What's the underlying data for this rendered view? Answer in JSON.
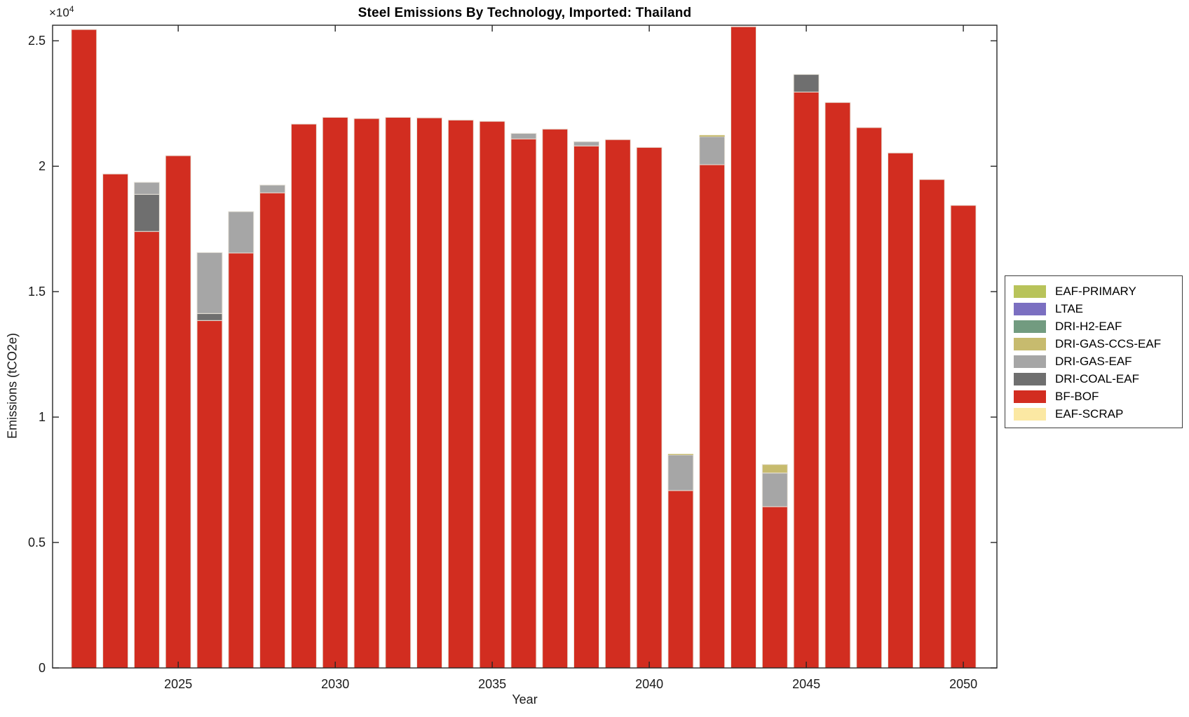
{
  "title": "Steel Emissions By Technology, Imported: Thailand",
  "y_axis_multiplier": {
    "base": "×10",
    "exponent": "4"
  },
  "chart_data": {
    "type": "bar",
    "stacked": true,
    "title": "Steel Emissions By Technology, Imported: Thailand",
    "xlabel": "Year",
    "ylabel": "Emissions (tCO2e)",
    "grid": false,
    "legend_position": "outside-right",
    "xlim": [
      2021,
      2051.07
    ],
    "ylim": [
      0,
      25620
    ],
    "x": [
      2022,
      2023,
      2024,
      2025,
      2026,
      2027,
      2028,
      2029,
      2030,
      2031,
      2032,
      2033,
      2034,
      2035,
      2036,
      2037,
      2038,
      2039,
      2040,
      2041,
      2042,
      2043,
      2044,
      2045,
      2046,
      2047,
      2048,
      2049,
      2050
    ],
    "xticks": [
      2025,
      2030,
      2035,
      2040,
      2045,
      2050
    ],
    "xtick_labels": [
      "2025",
      "2030",
      "2035",
      "2040",
      "2045",
      "2050"
    ],
    "yticks": [
      0,
      5000,
      10000,
      15000,
      20000,
      25000
    ],
    "ytick_labels": [
      "0",
      "0.5",
      "1",
      "1.5",
      "2",
      "2.5"
    ],
    "bar_edge_color": "#e9e5db",
    "series": [
      {
        "name": "EAF-SCRAP",
        "color": "#fbe8a3",
        "values": [
          0,
          0,
          0,
          0,
          0,
          0,
          0,
          0,
          0,
          0,
          0,
          0,
          0,
          0,
          0,
          0,
          0,
          0,
          0,
          0,
          0,
          0,
          0,
          0,
          0,
          0,
          0,
          0,
          0
        ]
      },
      {
        "name": "BF-BOF",
        "color": "#d22d20",
        "values": [
          25450,
          19690,
          17400,
          20420,
          13850,
          16540,
          18940,
          21680,
          21950,
          21900,
          21950,
          21930,
          21840,
          21790,
          21090,
          21480,
          20810,
          21060,
          20750,
          7070,
          20060,
          25560,
          6430,
          22960,
          22540,
          21540,
          20530,
          19470,
          18440
        ]
      },
      {
        "name": "DRI-COAL-EAF",
        "color": "#6f6f6f",
        "values": [
          0,
          0,
          1480,
          0,
          280,
          0,
          0,
          0,
          0,
          0,
          0,
          0,
          0,
          0,
          0,
          0,
          0,
          0,
          0,
          0,
          0,
          0,
          0,
          700,
          0,
          0,
          0,
          0,
          0
        ]
      },
      {
        "name": "DRI-GAS-EAF",
        "color": "#a6a6a6",
        "values": [
          0,
          0,
          480,
          0,
          2430,
          1650,
          310,
          0,
          0,
          0,
          0,
          0,
          0,
          0,
          220,
          0,
          170,
          0,
          0,
          1420,
          1120,
          0,
          1340,
          0,
          0,
          0,
          0,
          0,
          0
        ]
      },
      {
        "name": "DRI-GAS-CCS-EAF",
        "color": "#c7bb6e",
        "values": [
          0,
          0,
          0,
          0,
          0,
          0,
          0,
          0,
          0,
          0,
          0,
          0,
          0,
          0,
          0,
          0,
          0,
          0,
          0,
          40,
          60,
          0,
          340,
          0,
          0,
          0,
          0,
          0,
          0
        ]
      },
      {
        "name": "DRI-H2-EAF",
        "color": "#729b80",
        "values": [
          0,
          0,
          0,
          0,
          0,
          0,
          0,
          0,
          0,
          0,
          0,
          0,
          0,
          0,
          0,
          0,
          0,
          0,
          0,
          0,
          0,
          0,
          0,
          0,
          0,
          0,
          0,
          0,
          0
        ]
      },
      {
        "name": "LTAE",
        "color": "#7b6fc1",
        "values": [
          0,
          0,
          0,
          0,
          0,
          0,
          0,
          0,
          0,
          0,
          0,
          0,
          0,
          0,
          0,
          0,
          0,
          0,
          0,
          0,
          0,
          0,
          0,
          0,
          0,
          0,
          0,
          0,
          0
        ]
      },
      {
        "name": "EAF-PRIMARY",
        "color": "#b8c35a",
        "values": [
          0,
          0,
          0,
          0,
          0,
          0,
          0,
          0,
          0,
          0,
          0,
          0,
          0,
          0,
          0,
          0,
          0,
          0,
          0,
          0,
          0,
          0,
          0,
          0,
          0,
          0,
          0,
          0,
          0
        ]
      }
    ],
    "legend": [
      {
        "label": "EAF-PRIMARY",
        "color": "#b8c35a"
      },
      {
        "label": "LTAE",
        "color": "#7b6fc1"
      },
      {
        "label": "DRI-H2-EAF",
        "color": "#729b80"
      },
      {
        "label": "DRI-GAS-CCS-EAF",
        "color": "#c7bb6e"
      },
      {
        "label": "DRI-GAS-EAF",
        "color": "#a6a6a6"
      },
      {
        "label": "DRI-COAL-EAF",
        "color": "#6f6f6f"
      },
      {
        "label": "BF-BOF",
        "color": "#d22d20"
      },
      {
        "label": "EAF-SCRAP",
        "color": "#fbe8a3"
      }
    ]
  }
}
